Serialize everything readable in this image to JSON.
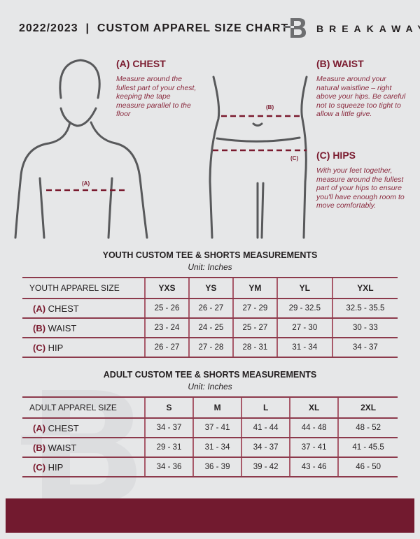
{
  "header": {
    "title": "2022/2023  |  CUSTOM APPAREL SIZE CHART",
    "brand": "BREAKAWAY",
    "logo_letter": "B"
  },
  "guide": {
    "chest": {
      "heading": "(A) CHEST",
      "text": "Measure around the fullest part of your chest, keeping the tape measure parallel to the floor",
      "marker": "(A)"
    },
    "waist": {
      "heading": "(B) WAIST",
      "text": "Measure around your natural waistline – right above your hips. Be careful not to squeeze too tight to allow a little give.",
      "marker": "(B)"
    },
    "hips": {
      "heading": "(C) HIPS",
      "text": "With your feet together, measure around the fullest part of your hips to ensure you'll have enough room to move comfortably.",
      "marker": "(C)"
    }
  },
  "youth": {
    "title": "YOUTH CUSTOM TEE & SHORTS MEASUREMENTS",
    "unit": "Unit: Inches",
    "size_label": "YOUTH APPAREL SIZE",
    "sizes": [
      "YXS",
      "YS",
      "YM",
      "YL",
      "YXL"
    ],
    "rows": [
      {
        "key": "(A)",
        "name": "CHEST",
        "values": [
          "25 - 26",
          "26 - 27",
          "27 - 29",
          "29 - 32.5",
          "32.5 - 35.5"
        ]
      },
      {
        "key": "(B)",
        "name": "WAIST",
        "values": [
          "23 - 24",
          "24 - 25",
          "25 - 27",
          "27 - 30",
          "30 - 33"
        ]
      },
      {
        "key": "(C)",
        "name": "HIP",
        "values": [
          "26 - 27",
          "27 - 28",
          "28 - 31",
          "31 - 34",
          "34 - 37"
        ]
      }
    ]
  },
  "adult": {
    "title": "ADULT CUSTOM TEE & SHORTS MEASUREMENTS",
    "unit": "Unit: Inches",
    "size_label": "ADULT APPAREL SIZE",
    "sizes": [
      "S",
      "M",
      "L",
      "XL",
      "2XL"
    ],
    "rows": [
      {
        "key": "(A)",
        "name": "CHEST",
        "values": [
          "34 - 37",
          "37 - 41",
          "41 - 44",
          "44 - 48",
          "48 - 52"
        ]
      },
      {
        "key": "(B)",
        "name": "WAIST",
        "values": [
          "29 - 31",
          "31 - 34",
          "34 - 37",
          "37 - 41",
          "41 - 45.5"
        ]
      },
      {
        "key": "(C)",
        "name": "HIP",
        "values": [
          "34 - 36",
          "36 - 39",
          "39 - 42",
          "43 - 46",
          "46 - 50"
        ]
      }
    ]
  },
  "colors": {
    "accent": "#721a2f",
    "background": "#e6e7e8"
  }
}
